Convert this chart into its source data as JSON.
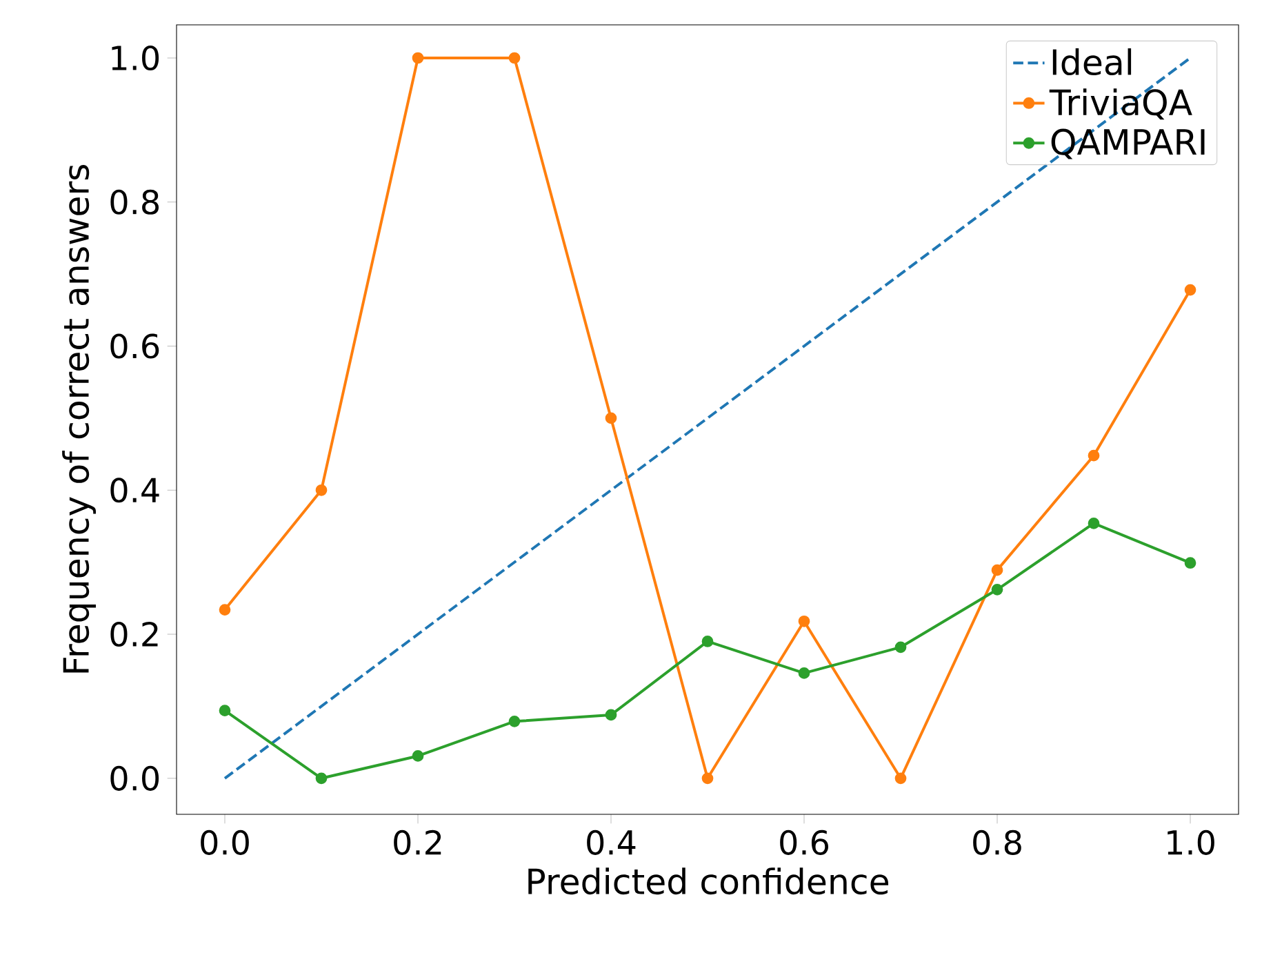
{
  "chart_data": {
    "type": "line",
    "xlabel": "Predicted confidence",
    "ylabel": "Frequency of correct answers",
    "x": [
      0.0,
      0.1,
      0.2,
      0.3,
      0.4,
      0.5,
      0.6,
      0.7,
      0.8,
      0.9,
      1.0
    ],
    "series": [
      {
        "name": "Ideal",
        "color": "#1f77b4",
        "x": [
          0.0,
          1.0
        ],
        "values": [
          0.0,
          1.0
        ],
        "marker": "none",
        "line_style": "dashed"
      },
      {
        "name": "TriviaQA",
        "color": "#ff7f0e",
        "values": [
          0.234,
          0.4,
          1.0,
          1.0,
          0.5,
          0.0,
          0.218,
          0.0,
          0.289,
          0.448,
          0.678
        ],
        "marker": "circle",
        "line_style": "solid"
      },
      {
        "name": "QAMPARI",
        "color": "#2ca02c",
        "values": [
          0.094,
          0.0,
          0.031,
          0.079,
          0.088,
          0.19,
          0.146,
          0.182,
          0.262,
          0.354,
          0.299
        ],
        "marker": "circle",
        "line_style": "solid"
      }
    ],
    "xlim": [
      -0.05,
      1.05
    ],
    "ylim": [
      -0.05,
      1.046
    ],
    "xticks": [
      {
        "value": 0.0,
        "label": "0.0"
      },
      {
        "value": 0.2,
        "label": "0.2"
      },
      {
        "value": 0.4,
        "label": "0.4"
      },
      {
        "value": 0.6,
        "label": "0.6"
      },
      {
        "value": 0.8,
        "label": "0.8"
      },
      {
        "value": 1.0,
        "label": "1.0"
      }
    ],
    "yticks": [
      {
        "value": 0.0,
        "label": "0.0"
      },
      {
        "value": 0.2,
        "label": "0.2"
      },
      {
        "value": 0.4,
        "label": "0.4"
      },
      {
        "value": 0.6,
        "label": "0.6"
      },
      {
        "value": 0.8,
        "label": "0.8"
      },
      {
        "value": 1.0,
        "label": "1.0"
      }
    ],
    "grid": false,
    "legend": "top right"
  }
}
